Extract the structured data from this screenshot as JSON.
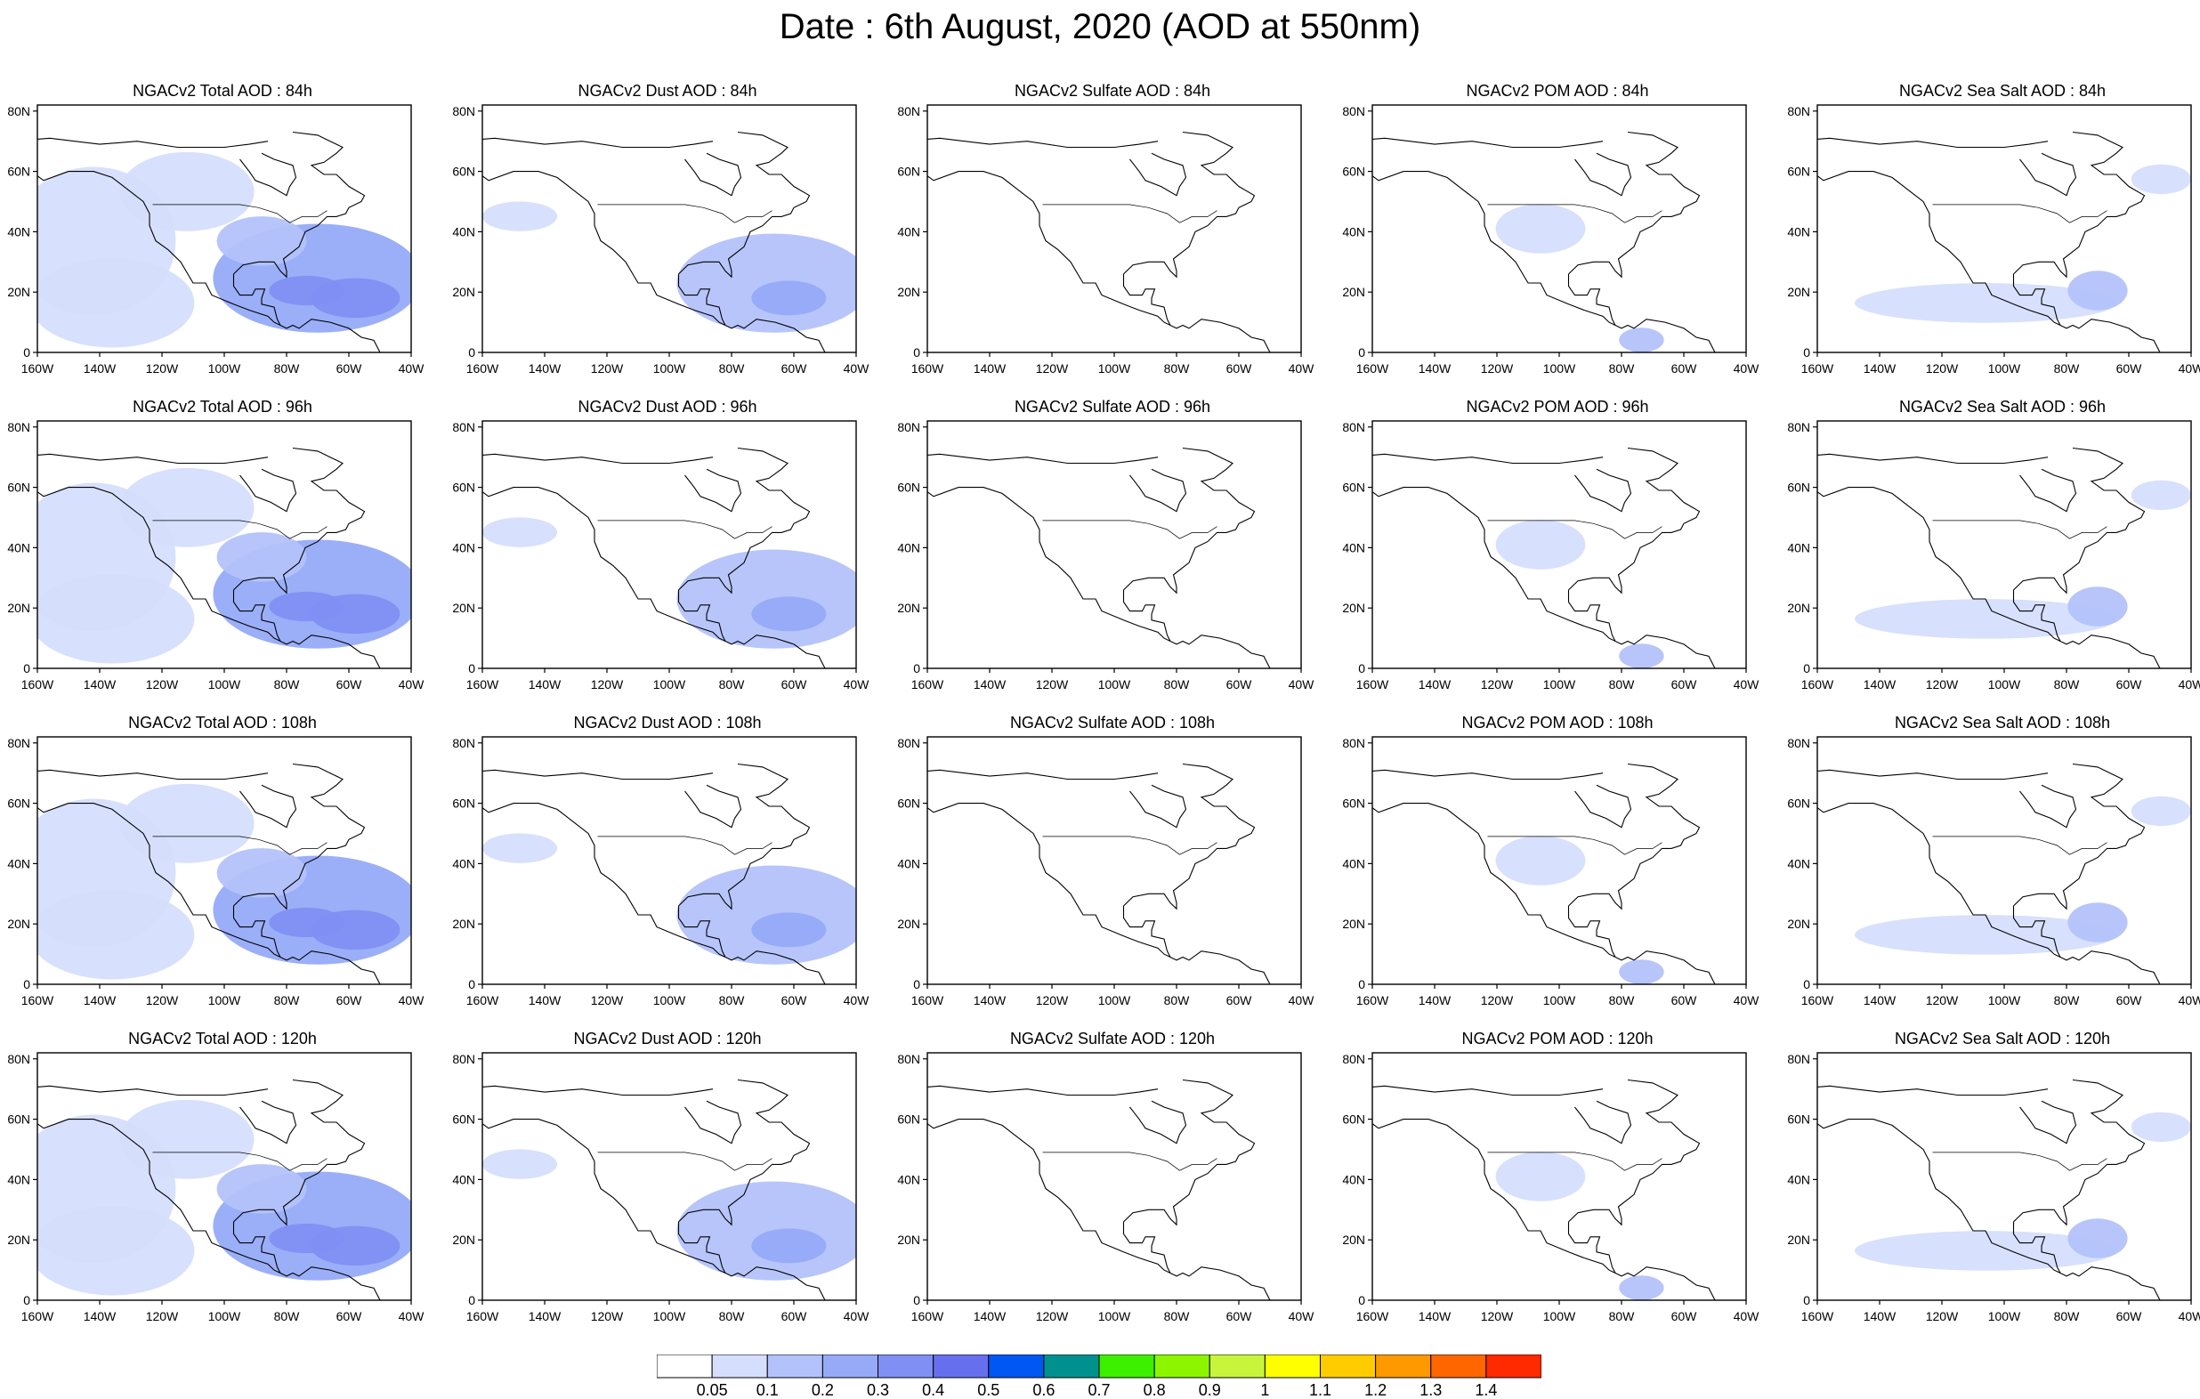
{
  "title": "Date : 6th August, 2020 (AOD at 550nm)",
  "rows": [
    "84h",
    "96h",
    "108h",
    "120h"
  ],
  "panels": [
    [
      "NGACv2 Total AOD : 84h",
      "NGACv2 Dust AOD : 84h",
      "NGACv2 Sulfate AOD : 84h",
      "NGACv2 POM AOD : 84h",
      "NGACv2 Sea Salt AOD : 84h"
    ],
    [
      "NGACv2 Total AOD : 96h",
      "NGACv2 Dust AOD : 96h",
      "NGACv2 Sulfate AOD : 96h",
      "NGACv2 POM AOD : 96h",
      "NGACv2 Sea Salt AOD : 96h"
    ],
    [
      "NGACv2 Total AOD : 108h",
      "NGACv2 Dust AOD : 108h",
      "NGACv2 Sulfate AOD : 108h",
      "NGACv2 POM AOD : 108h",
      "NGACv2 Sea Salt AOD : 108h"
    ],
    [
      "NGACv2 Total AOD : 120h",
      "NGACv2 Dust AOD : 120h",
      "NGACv2 Sulfate AOD : 120h",
      "NGACv2 POM AOD : 120h",
      "NGACv2 Sea Salt  AOD : 120h"
    ]
  ],
  "lat_ticks": [
    "0",
    "20N",
    "40N",
    "60N",
    "80N"
  ],
  "lon_ticks": [
    "160W",
    "140W",
    "120W",
    "100W",
    "80W",
    "60W",
    "40W"
  ],
  "colorbar": {
    "colors": [
      "#ffffff",
      "#d5defc",
      "#b3c2fa",
      "#96aaf8",
      "#7f8ff3",
      "#6670ee",
      "#0057f3",
      "#00918f",
      "#3cf000",
      "#8cf500",
      "#c8f53c",
      "#ffff00",
      "#ffcc00",
      "#ff9900",
      "#ff6600",
      "#ff2a00"
    ],
    "labels": [
      "0.05",
      "0.1",
      "0.2",
      "0.3",
      "0.4",
      "0.5",
      "0.6",
      "0.7",
      "0.8",
      "0.9",
      "1",
      "1.1",
      "1.2",
      "1.3",
      "1.4"
    ]
  }
}
